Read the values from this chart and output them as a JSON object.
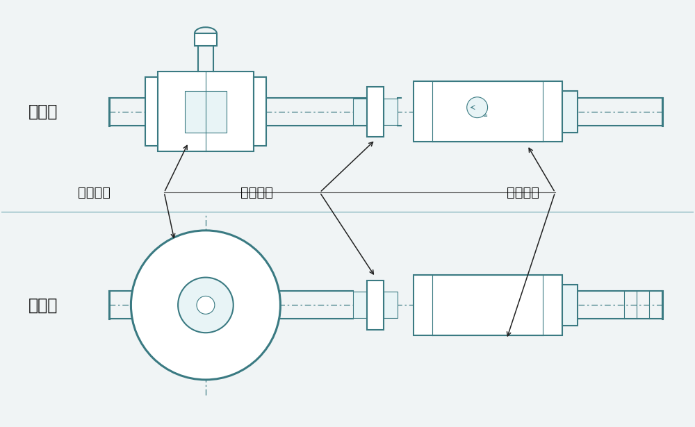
{
  "bg_color": "#f0f4f5",
  "line_color": "#3a7a82",
  "dark_color": "#222222",
  "fill_light": "#ffffff",
  "fill_mid": "#e8f4f6",
  "label_front_view": "正视图",
  "label_top_view": "俯视图",
  "label_speed_disc": "测速齿盘",
  "label_mount": "安装装置",
  "label_mark": "定位标记",
  "font_size_label": 17,
  "font_size_annot": 14,
  "lw_main": 1.5,
  "lw_thin": 0.8,
  "lw_thick": 2.2,
  "lw_axis": 0.9
}
